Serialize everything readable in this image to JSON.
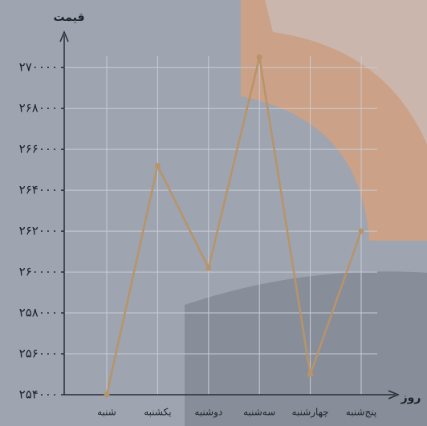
{
  "chart_data": {
    "type": "line",
    "x_label": "روز",
    "y_label": "قیمت",
    "categories": [
      "شنبه",
      "یکشنبه",
      "دوشنبه",
      "سه‌شنبه",
      "چهارشنبه",
      "پنج‌شنبه"
    ],
    "series": [
      {
        "name": "قیمت",
        "color": "#b89468",
        "values": [
          254000,
          265200,
          260200,
          270500,
          255000,
          262000
        ]
      }
    ],
    "ylim": [
      254000,
      271500
    ],
    "yticks": [
      {
        "value": 254000,
        "label": "۲۵۴۰۰۰"
      },
      {
        "value": 256000,
        "label": "۲۵۶۰۰۰"
      },
      {
        "value": 258000,
        "label": "۲۵۸۰۰۰"
      },
      {
        "value": 260000,
        "label": "۲۶۰۰۰۰"
      },
      {
        "value": 262000,
        "label": "۲۶۲۰۰۰"
      },
      {
        "value": 264000,
        "label": "۲۶۴۰۰۰"
      },
      {
        "value": 266000,
        "label": "۲۶۶۰۰۰"
      },
      {
        "value": 268000,
        "label": "۲۶۸۰۰۰"
      },
      {
        "value": 270000,
        "label": "۲۷۰۰۰۰"
      }
    ],
    "grid": true
  }
}
